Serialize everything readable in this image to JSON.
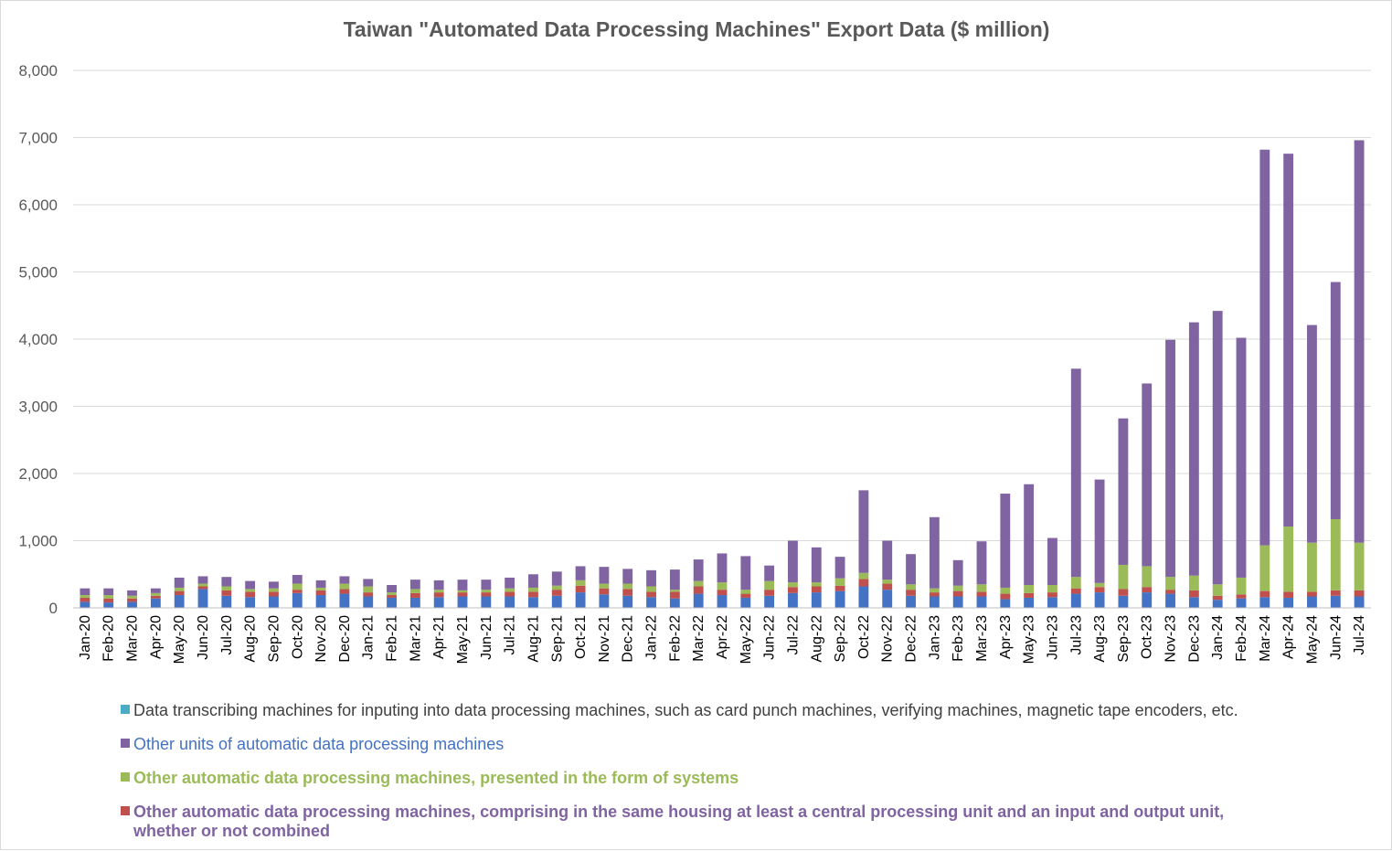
{
  "chart_data": {
    "type": "bar",
    "stacked": true,
    "title": "Taiwan \"Automated Data Processing Machines\" Export Data ($ million)",
    "xlabel": "",
    "ylabel": "",
    "ylim": [
      0,
      8000
    ],
    "yticks": [
      0,
      1000,
      2000,
      3000,
      4000,
      5000,
      6000,
      7000,
      8000
    ],
    "ytick_labels": [
      "0",
      "1,000",
      "2,000",
      "3,000",
      "4,000",
      "5,000",
      "6,000",
      "7,000",
      "8,000"
    ],
    "grid": true,
    "legend_position": "bottom",
    "categories": [
      "Jan-20",
      "Feb-20",
      "Mar-20",
      "Apr-20",
      "May-20",
      "Jun-20",
      "Jul-20",
      "Aug-20",
      "Sep-20",
      "Oct-20",
      "Nov-20",
      "Dec-20",
      "Jan-21",
      "Feb-21",
      "Mar-21",
      "Apr-21",
      "May-21",
      "Jun-21",
      "Jul-21",
      "Aug-21",
      "Sep-21",
      "Oct-21",
      "Nov-21",
      "Dec-21",
      "Jan-22",
      "Feb-22",
      "Mar-22",
      "Apr-22",
      "May-22",
      "Jun-22",
      "Jul-22",
      "Aug-22",
      "Sep-22",
      "Oct-22",
      "Nov-22",
      "Dec-22",
      "Jan-23",
      "Feb-23",
      "Mar-23",
      "Apr-23",
      "May-23",
      "Jun-23",
      "Jul-23",
      "Aug-23",
      "Sep-23",
      "Oct-23",
      "Nov-23",
      "Dec-23",
      "Jan-24",
      "Feb-24",
      "Mar-24",
      "Apr-24",
      "May-24",
      "Jun-24",
      "Jul-24"
    ],
    "series": [
      {
        "name": "Other automatic data processing machines, comprising in the same housing at least a central processing unit and an input and output unit, whether or not combined",
        "color": "#4472C4",
        "values": [
          90,
          80,
          90,
          140,
          190,
          280,
          180,
          160,
          170,
          220,
          190,
          210,
          170,
          150,
          150,
          160,
          170,
          170,
          170,
          160,
          180,
          230,
          200,
          180,
          160,
          140,
          210,
          190,
          150,
          180,
          220,
          230,
          250,
          320,
          270,
          180,
          170,
          170,
          170,
          130,
          150,
          160,
          210,
          230,
          180,
          230,
          210,
          160,
          120,
          140,
          160,
          150,
          170,
          180,
          170
        ]
      },
      {
        "name": "Other automatic data processing machines, comprising in the same housing at least a central processing unit and an input and output unit, whether or not combined",
        "color": "#C0504D",
        "values": [
          60,
          60,
          50,
          40,
          60,
          40,
          80,
          80,
          70,
          50,
          70,
          70,
          60,
          40,
          70,
          70,
          60,
          60,
          70,
          80,
          90,
          100,
          90,
          100,
          80,
          100,
          110,
          80,
          60,
          90,
          90,
          90,
          80,
          110,
          90,
          90,
          60,
          80,
          70,
          80,
          70,
          70,
          80,
          80,
          100,
          80,
          60,
          100,
          60,
          60,
          90,
          90,
          70,
          80,
          90
        ]
      },
      {
        "name": "Other automatic data processing machines, presented in the form of systems",
        "color": "#9BBB59",
        "values": [
          40,
          50,
          40,
          40,
          50,
          40,
          60,
          40,
          50,
          90,
          40,
          80,
          90,
          40,
          60,
          40,
          30,
          40,
          50,
          60,
          60,
          80,
          70,
          80,
          80,
          30,
          80,
          110,
          60,
          130,
          70,
          60,
          110,
          90,
          60,
          80,
          60,
          80,
          110,
          90,
          120,
          110,
          170,
          60,
          360,
          310,
          190,
          220,
          170,
          250,
          680,
          970,
          730,
          1060,
          710
        ]
      },
      {
        "name": "Other units of automatic data processing machines",
        "color": "#8064A2",
        "values": [
          100,
          100,
          80,
          70,
          150,
          110,
          140,
          120,
          100,
          130,
          110,
          110,
          110,
          110,
          140,
          140,
          160,
          150,
          160,
          200,
          210,
          210,
          250,
          220,
          240,
          300,
          320,
          430,
          500,
          230,
          620,
          520,
          320,
          1230,
          580,
          450,
          1060,
          380,
          640,
          1400,
          1500,
          700,
          3100,
          1540,
          2180,
          2720,
          3530,
          3770,
          4070,
          3570,
          5890,
          5550,
          3240,
          3530,
          5990
        ]
      },
      {
        "name": "Data transcribing machines for inputing into data processing machines, such as card punch machines, verifying machines, magnetic tape encoders, etc.",
        "color": "#4BACC6",
        "values": [
          0,
          0,
          0,
          0,
          0,
          0,
          0,
          0,
          0,
          0,
          0,
          0,
          0,
          0,
          0,
          0,
          0,
          0,
          0,
          0,
          0,
          0,
          0,
          0,
          0,
          0,
          0,
          0,
          0,
          0,
          0,
          0,
          0,
          0,
          0,
          0,
          0,
          0,
          0,
          0,
          0,
          0,
          0,
          0,
          0,
          0,
          0,
          0,
          0,
          0,
          0,
          0,
          0,
          0,
          0
        ]
      }
    ]
  },
  "legend": [
    {
      "label": "Data transcribing machines for inputing into data processing machines, such as card punch machines, verifying machines, magnetic tape encoders, etc.",
      "swatch_color": "#4BACC6",
      "text_color": "#404040",
      "bold": false
    },
    {
      "label": "Other units of automatic data processing machines",
      "swatch_color": "#8064A2",
      "text_color": "#4472C4",
      "bold": false
    },
    {
      "label": "Other automatic data processing machines, presented in the form of systems",
      "swatch_color": "#9BBB59",
      "text_color": "#9BBB59",
      "bold": true
    },
    {
      "label_line1": "Other automatic data processing machines, comprising in the same housing at least a central processing unit and an input and output unit,",
      "label_line2": "whether or not combined",
      "swatch_color": "#C0504D",
      "text_color": "#8064A2",
      "bold": true
    }
  ]
}
